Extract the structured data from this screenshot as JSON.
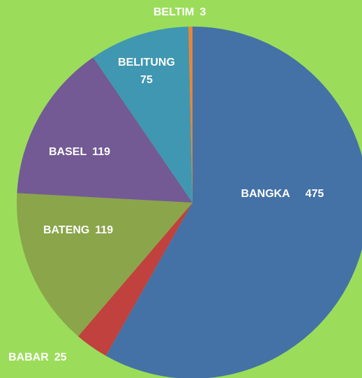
{
  "chart_data": {
    "type": "pie",
    "categories": [
      "BANGKA",
      "BABAR",
      "BATENG",
      "BASEL",
      "BELITUNG",
      "BELTIM"
    ],
    "values": [
      475,
      25,
      119,
      119,
      75,
      3
    ],
    "colors": [
      "#4472a6",
      "#c0413d",
      "#8ba54b",
      "#735a94",
      "#3f97b1",
      "#e8843a"
    ]
  }
}
